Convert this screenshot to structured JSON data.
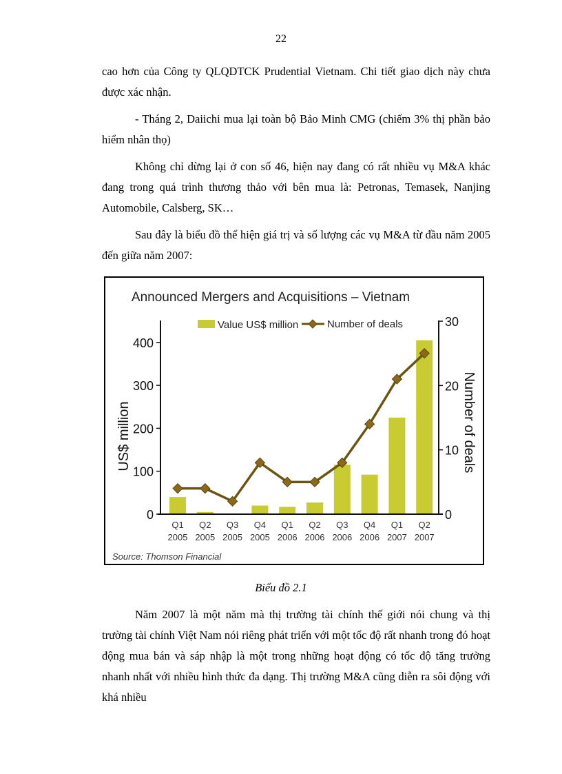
{
  "page_number": "22",
  "paragraphs_before": [
    "cao hơn của Công ty QLQDTCK Prudential Vietnam. Chi tiết giao dịch này chưa được xác nhận.",
    "- Tháng 2, Daiichi mua lại toàn bộ Bảo Minh CMG (chiếm 3% thị phần bảo hiểm nhân thọ)",
    "Không chỉ dừng lại ở con số 46, hiện nay đang có rất nhiều vụ M&A khác đang trong quá trình thương thảo với bên mua là: Petronas, Temasek, Nanjing Automobile, Calsberg, SK…",
    "Sau đây là biểu đồ thể hiện giá trị và số lượng các vụ M&A từ đầu năm 2005 đến giữa năm 2007:"
  ],
  "caption": "Biểu đồ 2.1",
  "paragraphs_after": [
    "Năm 2007 là một năm mà thị trường tài chính thế giới nói chung và thị trường tài chính Việt Nam nói riêng phát triển với một tốc độ rất nhanh trong đó hoạt động mua bán và sáp nhập là một trong những hoạt động có tốc độ tăng trưởng nhanh nhất với nhiều hình thức đa dạng. Thị trường M&A cũng diễn ra sôi động với khá nhiều"
  ],
  "chart_data": {
    "type": "bar+line",
    "title": "Announced Mergers and Acquisitions – Vietnam",
    "source": "Source: Thomson Financial",
    "categories": [
      [
        "Q1",
        "2005"
      ],
      [
        "Q2",
        "2005"
      ],
      [
        "Q3",
        "2005"
      ],
      [
        "Q4",
        "2005"
      ],
      [
        "Q1",
        "2006"
      ],
      [
        "Q2",
        "2006"
      ],
      [
        "Q3",
        "2006"
      ],
      [
        "Q4",
        "2006"
      ],
      [
        "Q1",
        "2007"
      ],
      [
        "Q2",
        "2007"
      ]
    ],
    "series": [
      {
        "name": "Value US$ million",
        "type": "bar",
        "axis": "left",
        "color": "#c8cc32",
        "values": [
          40,
          5,
          0,
          20,
          17,
          27,
          115,
          92,
          225,
          405
        ]
      },
      {
        "name": "Number of deals",
        "type": "line",
        "axis": "right",
        "color": "#6b5410",
        "values": [
          4,
          4,
          2,
          8,
          5,
          5,
          8,
          14,
          21,
          25
        ]
      }
    ],
    "ylabel": "US$ million",
    "ylim": [
      0,
      450
    ],
    "yticks": [
      "0",
      "100",
      "200",
      "300",
      "400"
    ],
    "y2label": "Number of deals",
    "y2lim": [
      0,
      30
    ],
    "y2ticks": [
      "0",
      "10",
      "20",
      "30"
    ],
    "legend": "top-center",
    "grid": false
  }
}
